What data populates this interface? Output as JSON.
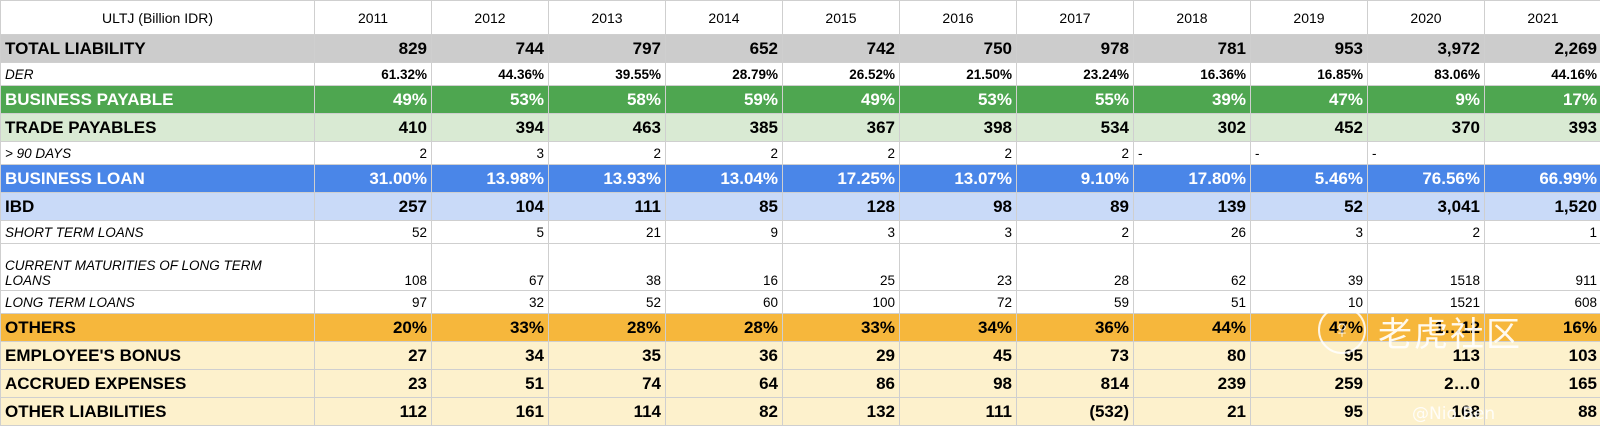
{
  "header": {
    "label": "ULTJ (Billion IDR)",
    "years": [
      "2011",
      "2012",
      "2013",
      "2014",
      "2015",
      "2016",
      "2017",
      "2018",
      "2019",
      "2020",
      "2021"
    ]
  },
  "rows": [
    {
      "id": "total-liability",
      "label": "TOTAL LIABILITY",
      "values": [
        "829",
        "744",
        "797",
        "652",
        "742",
        "750",
        "978",
        "781",
        "953",
        "3,972",
        "2,269"
      ]
    },
    {
      "id": "der",
      "label": "DER",
      "values": [
        "61.32%",
        "44.36%",
        "39.55%",
        "28.79%",
        "26.52%",
        "21.50%",
        "23.24%",
        "16.36%",
        "16.85%",
        "83.06%",
        "44.16%"
      ]
    },
    {
      "id": "business-payable",
      "label": "BUSINESS PAYABLE",
      "values": [
        "49%",
        "53%",
        "58%",
        "59%",
        "49%",
        "53%",
        "55%",
        "39%",
        "47%",
        "9%",
        "17%"
      ]
    },
    {
      "id": "trade-payables",
      "label": "TRADE PAYABLES",
      "values": [
        "410",
        "394",
        "463",
        "385",
        "367",
        "398",
        "534",
        "302",
        "452",
        "370",
        "393"
      ]
    },
    {
      "id": "over-90-days",
      "label": "> 90 DAYS",
      "values": [
        "2",
        "3",
        "2",
        "2",
        "2",
        "2",
        "2",
        "-",
        "-",
        "-",
        ""
      ]
    },
    {
      "id": "business-loan",
      "label": "BUSINESS LOAN",
      "values": [
        "31.00%",
        "13.98%",
        "13.93%",
        "13.04%",
        "17.25%",
        "13.07%",
        "9.10%",
        "17.80%",
        "5.46%",
        "76.56%",
        "66.99%"
      ]
    },
    {
      "id": "ibd",
      "label": "IBD",
      "values": [
        "257",
        "104",
        "111",
        "85",
        "128",
        "98",
        "89",
        "139",
        "52",
        "3,041",
        "1,520"
      ]
    },
    {
      "id": "short-term-loans",
      "label": "SHORT TERM LOANS",
      "values": [
        "52",
        "5",
        "21",
        "9",
        "3",
        "3",
        "2",
        "26",
        "3",
        "2",
        "1"
      ]
    },
    {
      "id": "current-maturities",
      "label": "CURRENT MATURITIES OF LONG TERM LOANS",
      "values": [
        "108",
        "67",
        "38",
        "16",
        "25",
        "23",
        "28",
        "62",
        "39",
        "1518",
        "911"
      ]
    },
    {
      "id": "long-term-loans",
      "label": "LONG TERM LOANS",
      "values": [
        "97",
        "32",
        "52",
        "60",
        "100",
        "72",
        "59",
        "51",
        "10",
        "1521",
        "608"
      ]
    },
    {
      "id": "others",
      "label": "OTHERS",
      "values": [
        "20%",
        "33%",
        "28%",
        "28%",
        "33%",
        "34%",
        "36%",
        "44%",
        "47%",
        "1…12",
        "16%"
      ]
    },
    {
      "id": "employees-bonus",
      "label": "EMPLOYEE'S BONUS",
      "values": [
        "27",
        "34",
        "35",
        "36",
        "29",
        "45",
        "73",
        "80",
        "95",
        "113",
        "103"
      ]
    },
    {
      "id": "accrued-expenses",
      "label": "ACCRUED EXPENSES",
      "values": [
        "23",
        "51",
        "74",
        "64",
        "86",
        "98",
        "814",
        "239",
        "259",
        "2…0",
        "165"
      ]
    },
    {
      "id": "other-liabilities",
      "label": "OTHER LIABILITIES",
      "values": [
        "112",
        "161",
        "114",
        "82",
        "132",
        "111",
        "(532)",
        "21",
        "95",
        "168",
        "88"
      ]
    }
  ],
  "watermark": {
    "logo_glyph": "♀",
    "brand": "老虎社区",
    "author": "@Nio Ben"
  }
}
